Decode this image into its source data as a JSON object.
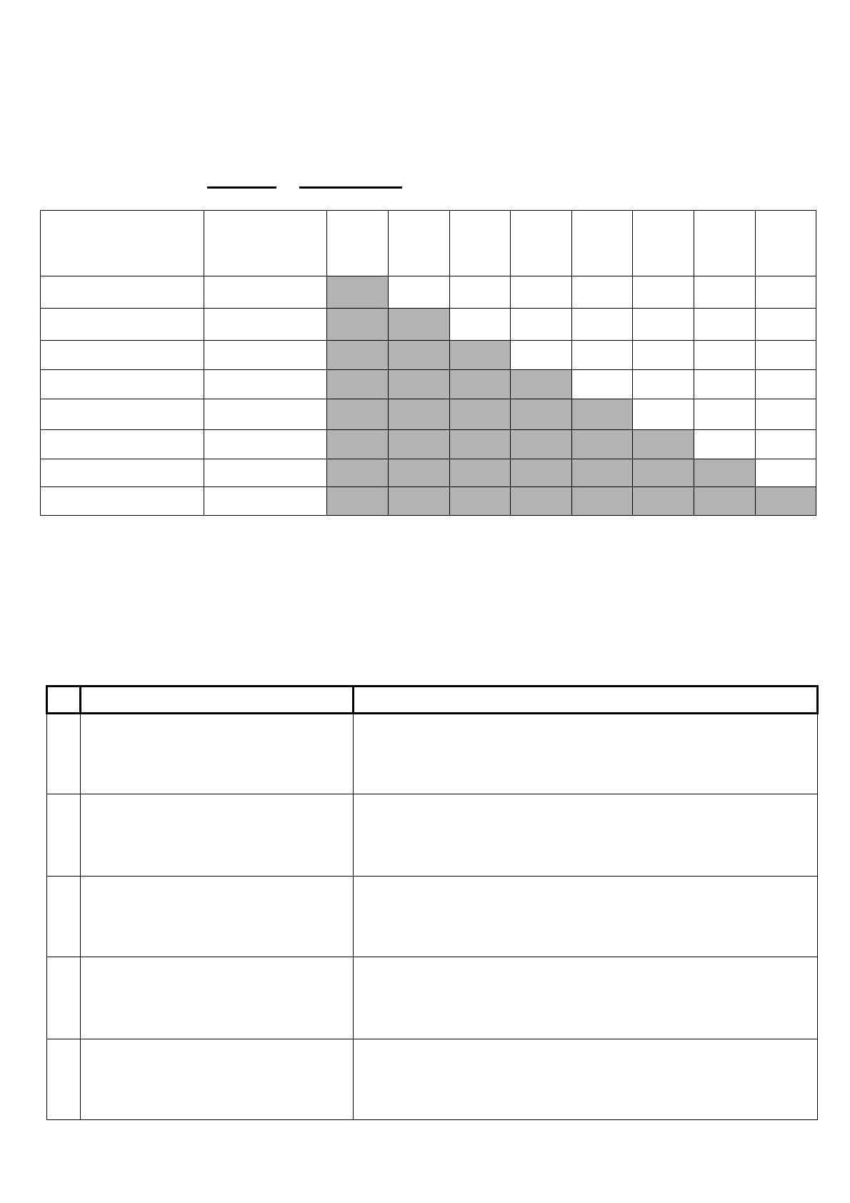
{
  "colors": {
    "shade": "#b3b3b3",
    "border": "#000000",
    "background": "#ffffff"
  },
  "matrix_table": {
    "columns": 10,
    "shaded_cells_per_row": [
      1,
      2,
      3,
      4,
      5,
      6,
      7,
      8
    ]
  },
  "list_table": {
    "rows": 5,
    "columns": 3
  }
}
